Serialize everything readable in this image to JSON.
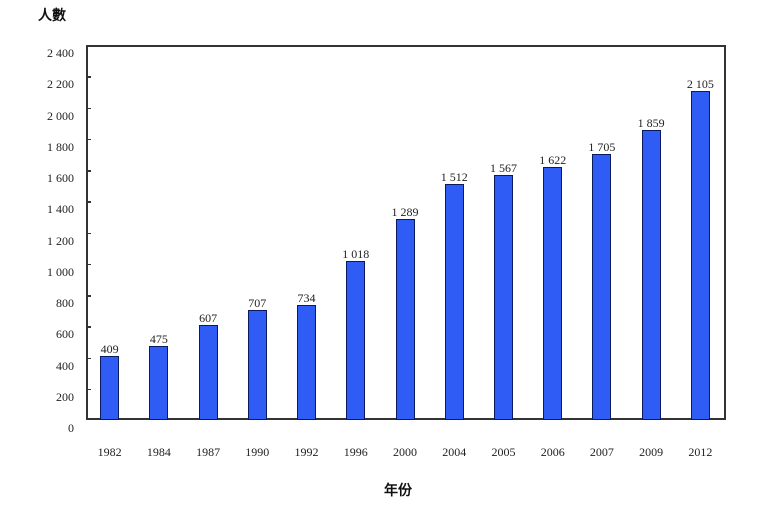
{
  "chart_data": {
    "type": "bar",
    "title": "",
    "xlabel": "年份",
    "ylabel": "人數",
    "categories": [
      "1982",
      "1984",
      "1987",
      "1990",
      "1992",
      "1996",
      "2000",
      "2004",
      "2005",
      "2006",
      "2007",
      "2009",
      "2012"
    ],
    "values": [
      409,
      475,
      607,
      707,
      734,
      1018,
      1289,
      1512,
      1567,
      1622,
      1705,
      1859,
      2105
    ],
    "value_labels": [
      "409",
      "475",
      "607",
      "707",
      "734",
      "1 018",
      "1 289",
      "1 512",
      "1 567",
      "1 622",
      "1 705",
      "1 859",
      "2 105"
    ],
    "ylim": [
      0,
      2400
    ],
    "yticks": [
      "0",
      "200",
      "400",
      "600",
      "800",
      "1 000",
      "1 200",
      "1 400",
      "1 600",
      "1 800",
      "2 000",
      "2 200",
      "2 400"
    ],
    "grid": false,
    "legend": null,
    "bar_color": "#2e5cf5",
    "bar_edge_color": "#0a1a5c"
  }
}
